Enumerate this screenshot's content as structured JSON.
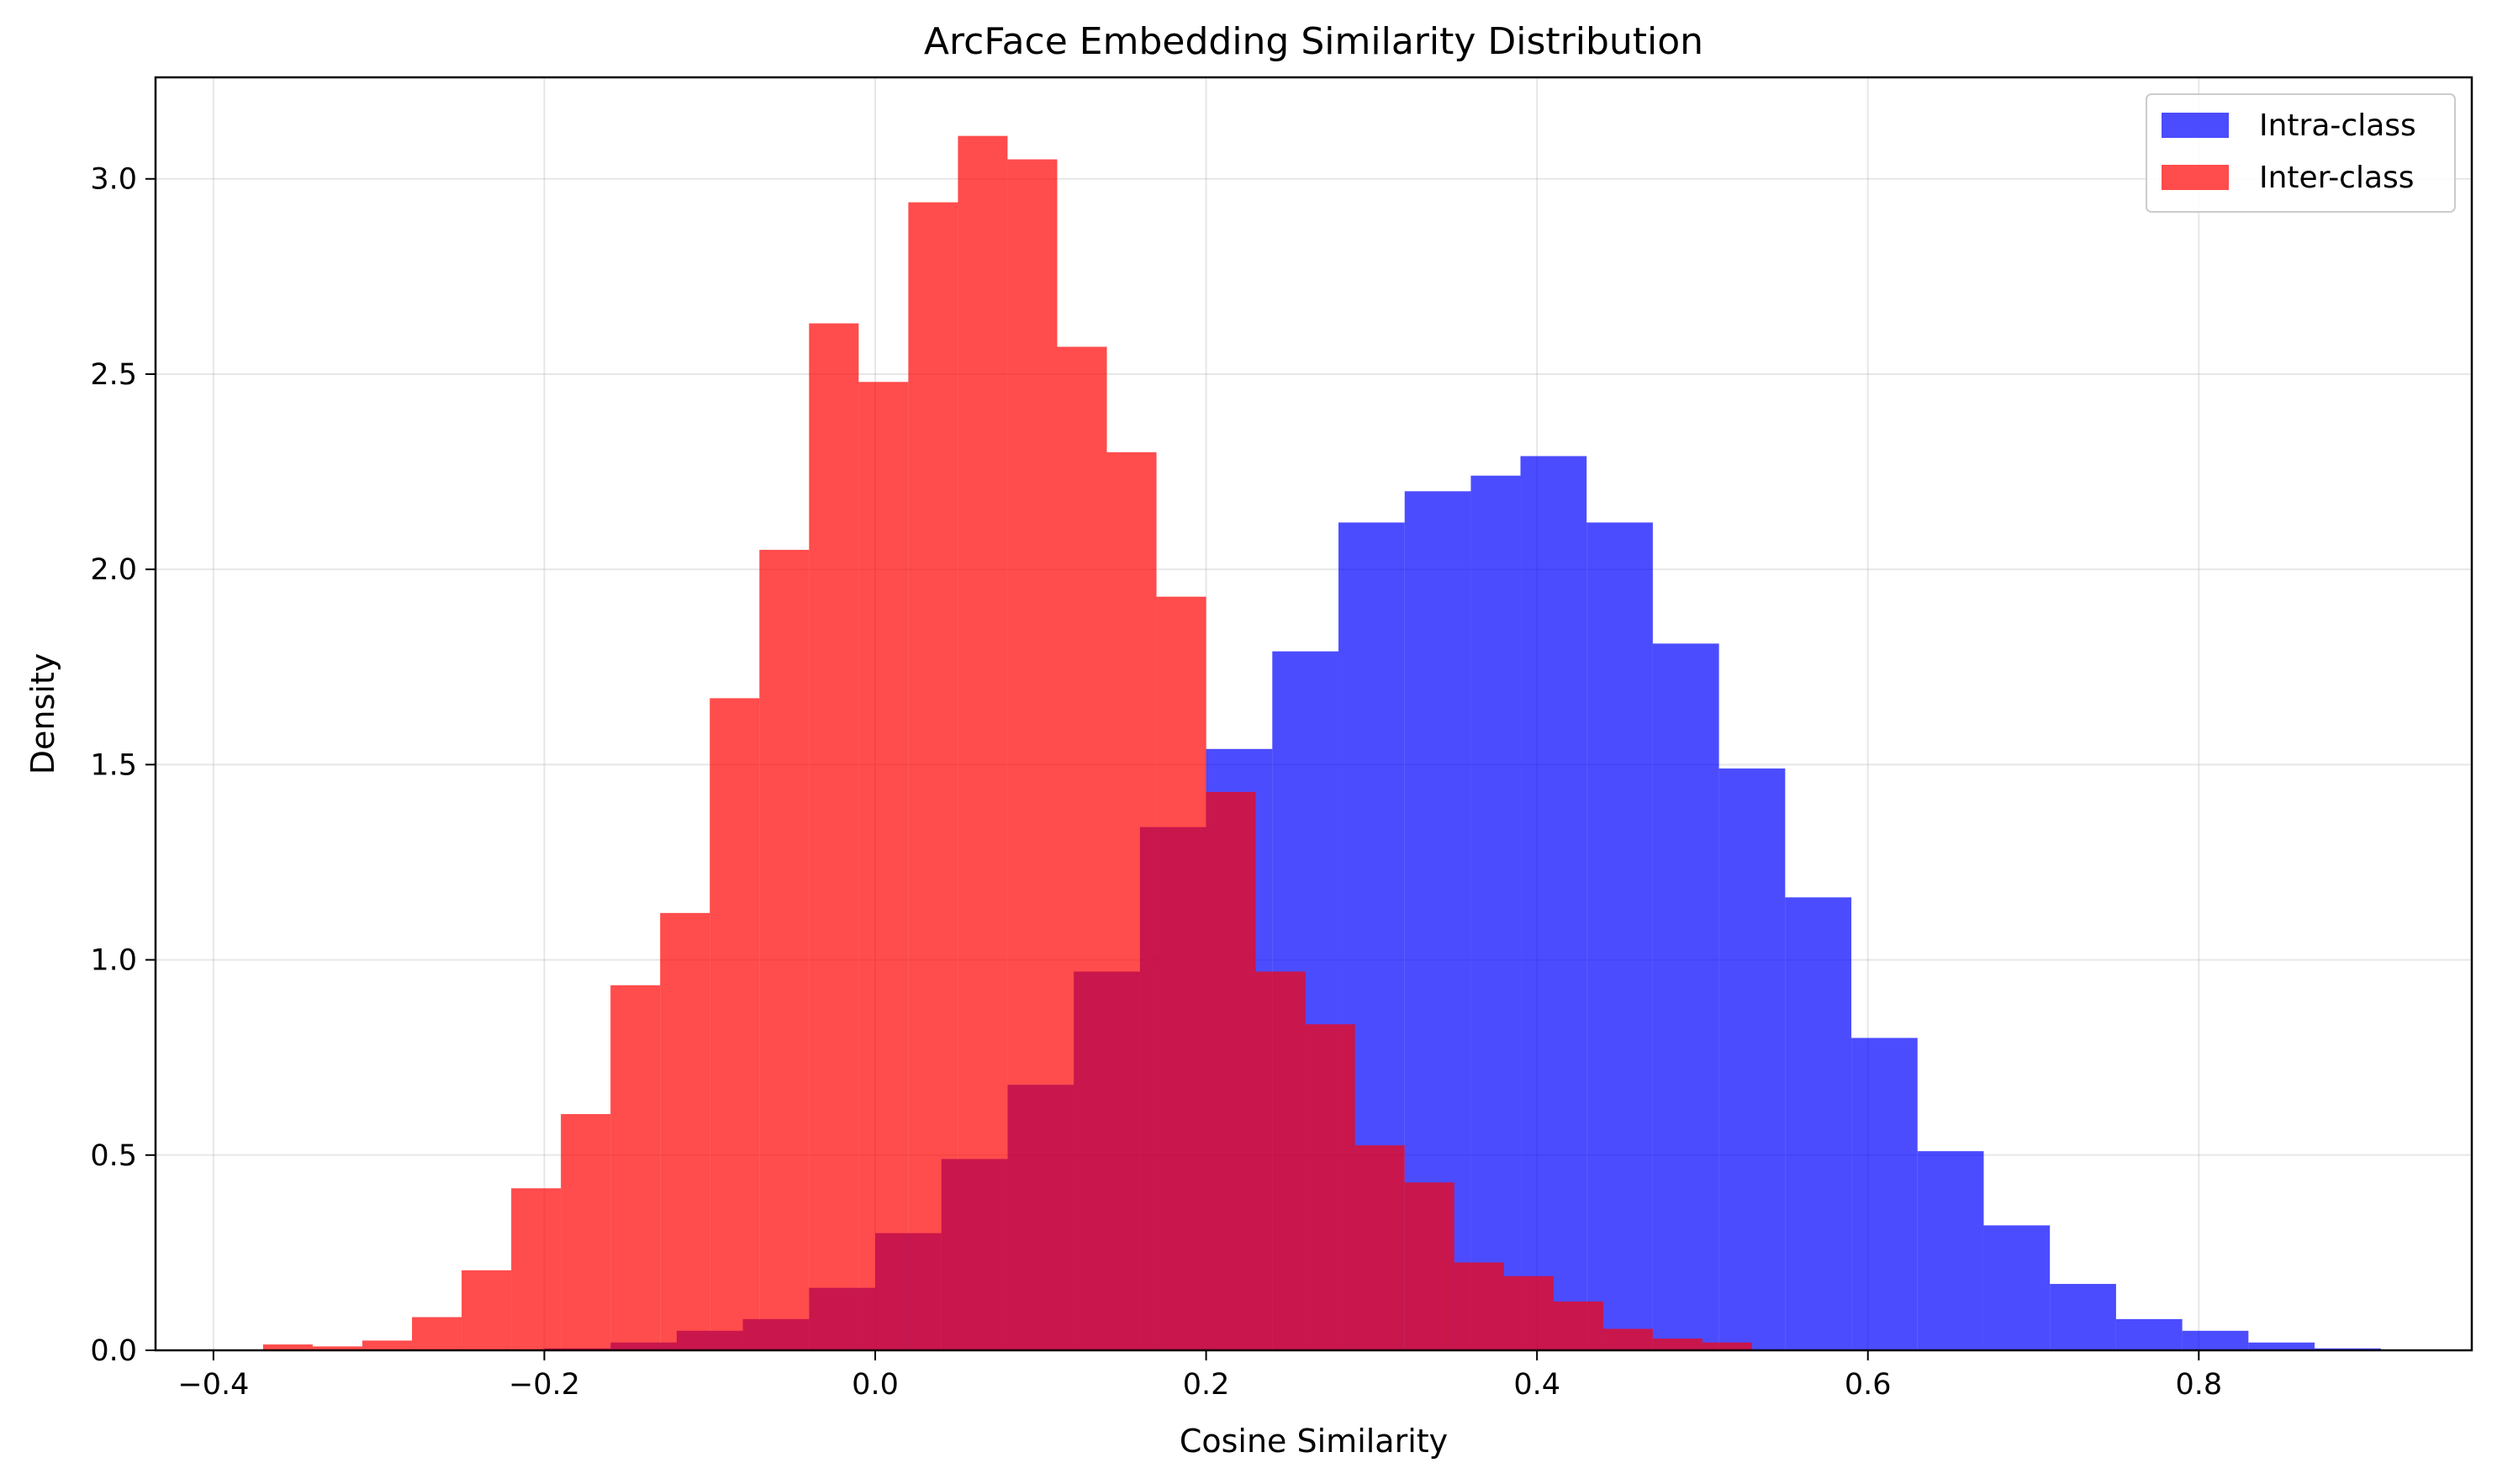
{
  "chart_data": {
    "type": "histogram",
    "title": "ArcFace Embedding Similarity Distribution",
    "xlabel": "Cosine Similarity",
    "ylabel": "Density",
    "xlim": [
      -0.435,
      0.965
    ],
    "ylim": [
      0,
      3.26
    ],
    "xticks": [
      -0.4,
      -0.2,
      0.0,
      0.2,
      0.4,
      0.6,
      0.8
    ],
    "xtick_labels": [
      "−0.4",
      "−0.2",
      "0.0",
      "0.2",
      "0.4",
      "0.6",
      "0.8"
    ],
    "yticks": [
      0.0,
      0.5,
      1.0,
      1.5,
      2.0,
      2.5,
      3.0
    ],
    "ytick_labels": [
      "0.0",
      "0.5",
      "1.0",
      "1.5",
      "2.0",
      "2.5",
      "3.0"
    ],
    "grid": true,
    "legend_position": "upper right",
    "series": [
      {
        "name": "Intra-class",
        "color": "#0000ff",
        "opacity": 0.7,
        "bin_edges": [
          -0.2,
          -0.16,
          -0.12,
          -0.08,
          -0.04,
          0.0,
          0.04,
          0.08,
          0.12,
          0.16,
          0.2,
          0.24,
          0.28,
          0.32,
          0.36,
          0.39,
          0.43,
          0.47,
          0.51,
          0.55,
          0.59,
          0.63,
          0.67,
          0.71,
          0.75,
          0.79,
          0.83,
          0.87,
          0.91
        ],
        "values": [
          0.005,
          0.02,
          0.05,
          0.08,
          0.16,
          0.3,
          0.49,
          0.68,
          0.97,
          1.34,
          1.54,
          1.79,
          2.12,
          2.2,
          2.24,
          2.29,
          2.12,
          1.81,
          1.49,
          1.16,
          0.8,
          0.51,
          0.32,
          0.17,
          0.08,
          0.05,
          0.02,
          0.005
        ]
      },
      {
        "name": "Inter-class",
        "color": "#ff0000",
        "opacity": 0.7,
        "bin_edges": [
          -0.37,
          -0.34,
          -0.31,
          -0.28,
          -0.25,
          -0.22,
          -0.19,
          -0.16,
          -0.13,
          -0.1,
          -0.07,
          -0.04,
          -0.01,
          0.02,
          0.05,
          0.08,
          0.11,
          0.14,
          0.17,
          0.2,
          0.23,
          0.26,
          0.29,
          0.32,
          0.35,
          0.38,
          0.41,
          0.44,
          0.47,
          0.5,
          0.53
        ],
        "values": [
          0.015,
          0.01,
          0.025,
          0.085,
          0.205,
          0.415,
          0.605,
          0.935,
          1.12,
          1.67,
          2.05,
          2.63,
          2.48,
          2.94,
          3.11,
          3.05,
          2.57,
          2.3,
          1.93,
          1.43,
          0.97,
          0.835,
          0.525,
          0.43,
          0.225,
          0.19,
          0.125,
          0.055,
          0.03,
          0.02
        ]
      }
    ]
  }
}
